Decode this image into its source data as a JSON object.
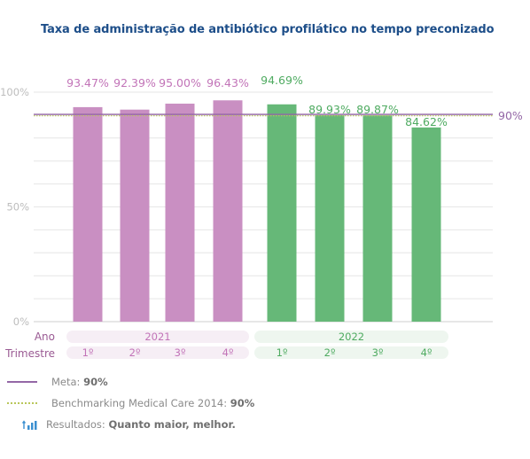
{
  "title": "Taxa de administração de antibiótico profilático no tempo preconizado",
  "colors": {
    "title": "#1d4e89",
    "series_2021": "#c98fc2",
    "series_2022": "#66b878",
    "label_2021": "#c274b8",
    "label_2022": "#4fab61",
    "meta_line": "#9467a6",
    "benchmark_line": "#b9c65a",
    "band_2021": "#f6eef5",
    "band_2022": "#eef6ef"
  },
  "chart_data": {
    "type": "bar",
    "ylim": [
      0,
      100
    ],
    "ytick_labels": [
      "100%",
      "50%",
      "0%"
    ],
    "yticks": [
      100,
      50,
      0
    ],
    "grid": true,
    "reference_label": "90%",
    "reference_value": 90,
    "row_labels": {
      "year": "Ano",
      "quarter": "Trimestre"
    },
    "groups": [
      {
        "year": "2021",
        "quarters": [
          "1º",
          "2º",
          "3º",
          "4º"
        ],
        "values": [
          93.47,
          92.39,
          95.0,
          96.43
        ],
        "labels": [
          "93.47%",
          "92.39%",
          "95.00%",
          "96.43%"
        ]
      },
      {
        "year": "2022",
        "quarters": [
          "1º",
          "2º",
          "3º",
          "4º"
        ],
        "values": [
          94.69,
          89.93,
          89.87,
          84.62
        ],
        "labels": [
          "94.69%",
          "89.93%",
          "89.87%",
          "84.62%"
        ]
      }
    ]
  },
  "legend": {
    "meta_label": "Meta:",
    "meta_value": "90%",
    "benchmark_label": "Benchmarking Medical Care 2014:",
    "benchmark_value": "90%",
    "results_label": "Resultados:",
    "results_value": "Quanto maior, melhor.",
    "results_icon": "bar-chart-up-arrow-icon"
  }
}
